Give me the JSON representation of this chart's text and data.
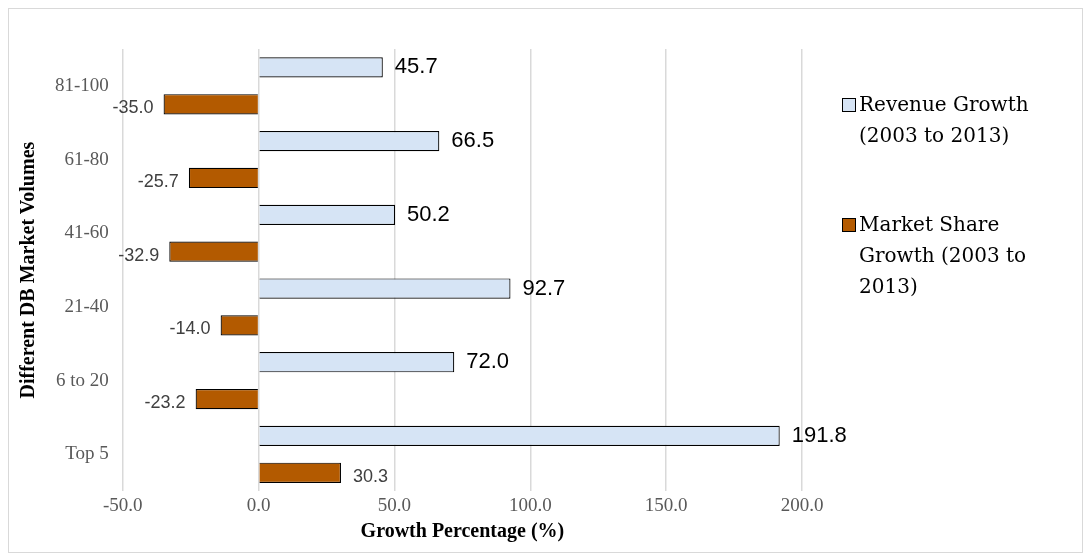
{
  "chart_data": {
    "type": "bar",
    "orientation": "horizontal",
    "xlabel": "Growth Percentage (%)",
    "ylabel": "Different DB Market Volumes",
    "categories": [
      "81-100",
      "61-80",
      "41-60",
      "21-40",
      "6 to 20",
      "Top 5"
    ],
    "series": [
      {
        "name": "Revenue Growth (2003 to 2013)",
        "color": "#d6e4f5",
        "values": [
          45.7,
          66.5,
          50.2,
          92.7,
          72.0,
          191.8
        ],
        "value_labels": [
          "45.7",
          "66.5",
          "50.2",
          "92.7",
          "72.0",
          "191.8"
        ]
      },
      {
        "name": "Market Share Growth (2003 to 2013)",
        "color": "#b35a00",
        "values": [
          -35.0,
          -25.7,
          -32.9,
          -14.0,
          -23.2,
          30.3
        ],
        "value_labels": [
          "-35.0",
          "-25.7",
          "-32.9",
          "-14.0",
          "-23.2",
          "30.3"
        ]
      }
    ],
    "xlim": [
      -50,
      200
    ],
    "xticks": [
      {
        "value": -50,
        "label": "-50.0"
      },
      {
        "value": 0,
        "label": "0.0"
      },
      {
        "value": 50,
        "label": "50.0"
      },
      {
        "value": 100,
        "label": "100.0"
      },
      {
        "value": 150,
        "label": "150.0"
      },
      {
        "value": 200,
        "label": "200.0"
      }
    ],
    "grid": "x",
    "legend": "right"
  }
}
